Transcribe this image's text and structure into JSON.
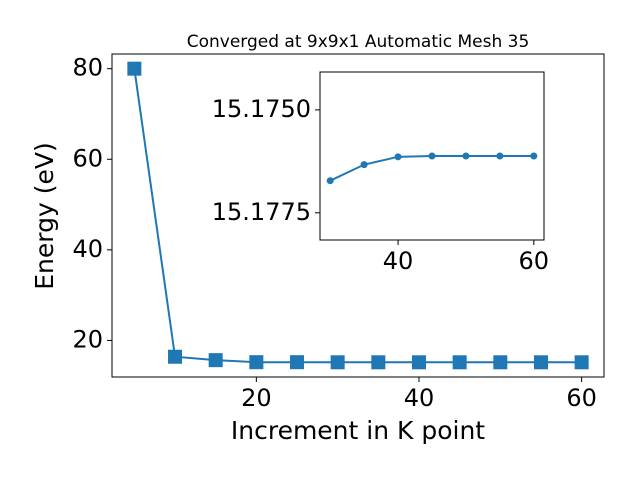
{
  "chart_data": [
    {
      "type": "line",
      "title": "Converged at 9x9x1 Automatic Mesh 35",
      "xlabel": "Increment in K point",
      "ylabel": "Energy (eV)",
      "x": [
        5,
        10,
        15,
        20,
        25,
        30,
        35,
        40,
        45,
        50,
        55,
        60
      ],
      "series": [
        {
          "color": "#1f77b4",
          "marker": "square",
          "values": [
            80,
            16.4,
            15.65,
            15.2,
            15.2,
            15.1767,
            15.1763,
            15.1761,
            15.1761,
            15.1761,
            15.1761,
            15.1761
          ]
        }
      ],
      "xlim": [
        2.25,
        62.75
      ],
      "ylim": [
        11.93,
        83.24
      ],
      "xticks": [
        20,
        40,
        60
      ],
      "yticks": [
        20,
        40,
        60,
        80
      ]
    },
    {
      "type": "line",
      "x": [
        30,
        35,
        40,
        45,
        50,
        55,
        60
      ],
      "series": [
        {
          "color": "#1f77b4",
          "marker": "circle",
          "values": [
            15.17672,
            15.17633,
            15.17614,
            15.17612,
            15.17612,
            15.17612,
            15.17612
          ]
        }
      ],
      "xlim": [
        28.5,
        61.5
      ],
      "ylim": [
        15.17816,
        15.17408
      ],
      "xticks": [
        40,
        60
      ],
      "yticks": [
        {
          "value": 15.175,
          "label": "15.1750"
        },
        {
          "value": 15.1775,
          "label": "15.1775"
        }
      ]
    }
  ]
}
